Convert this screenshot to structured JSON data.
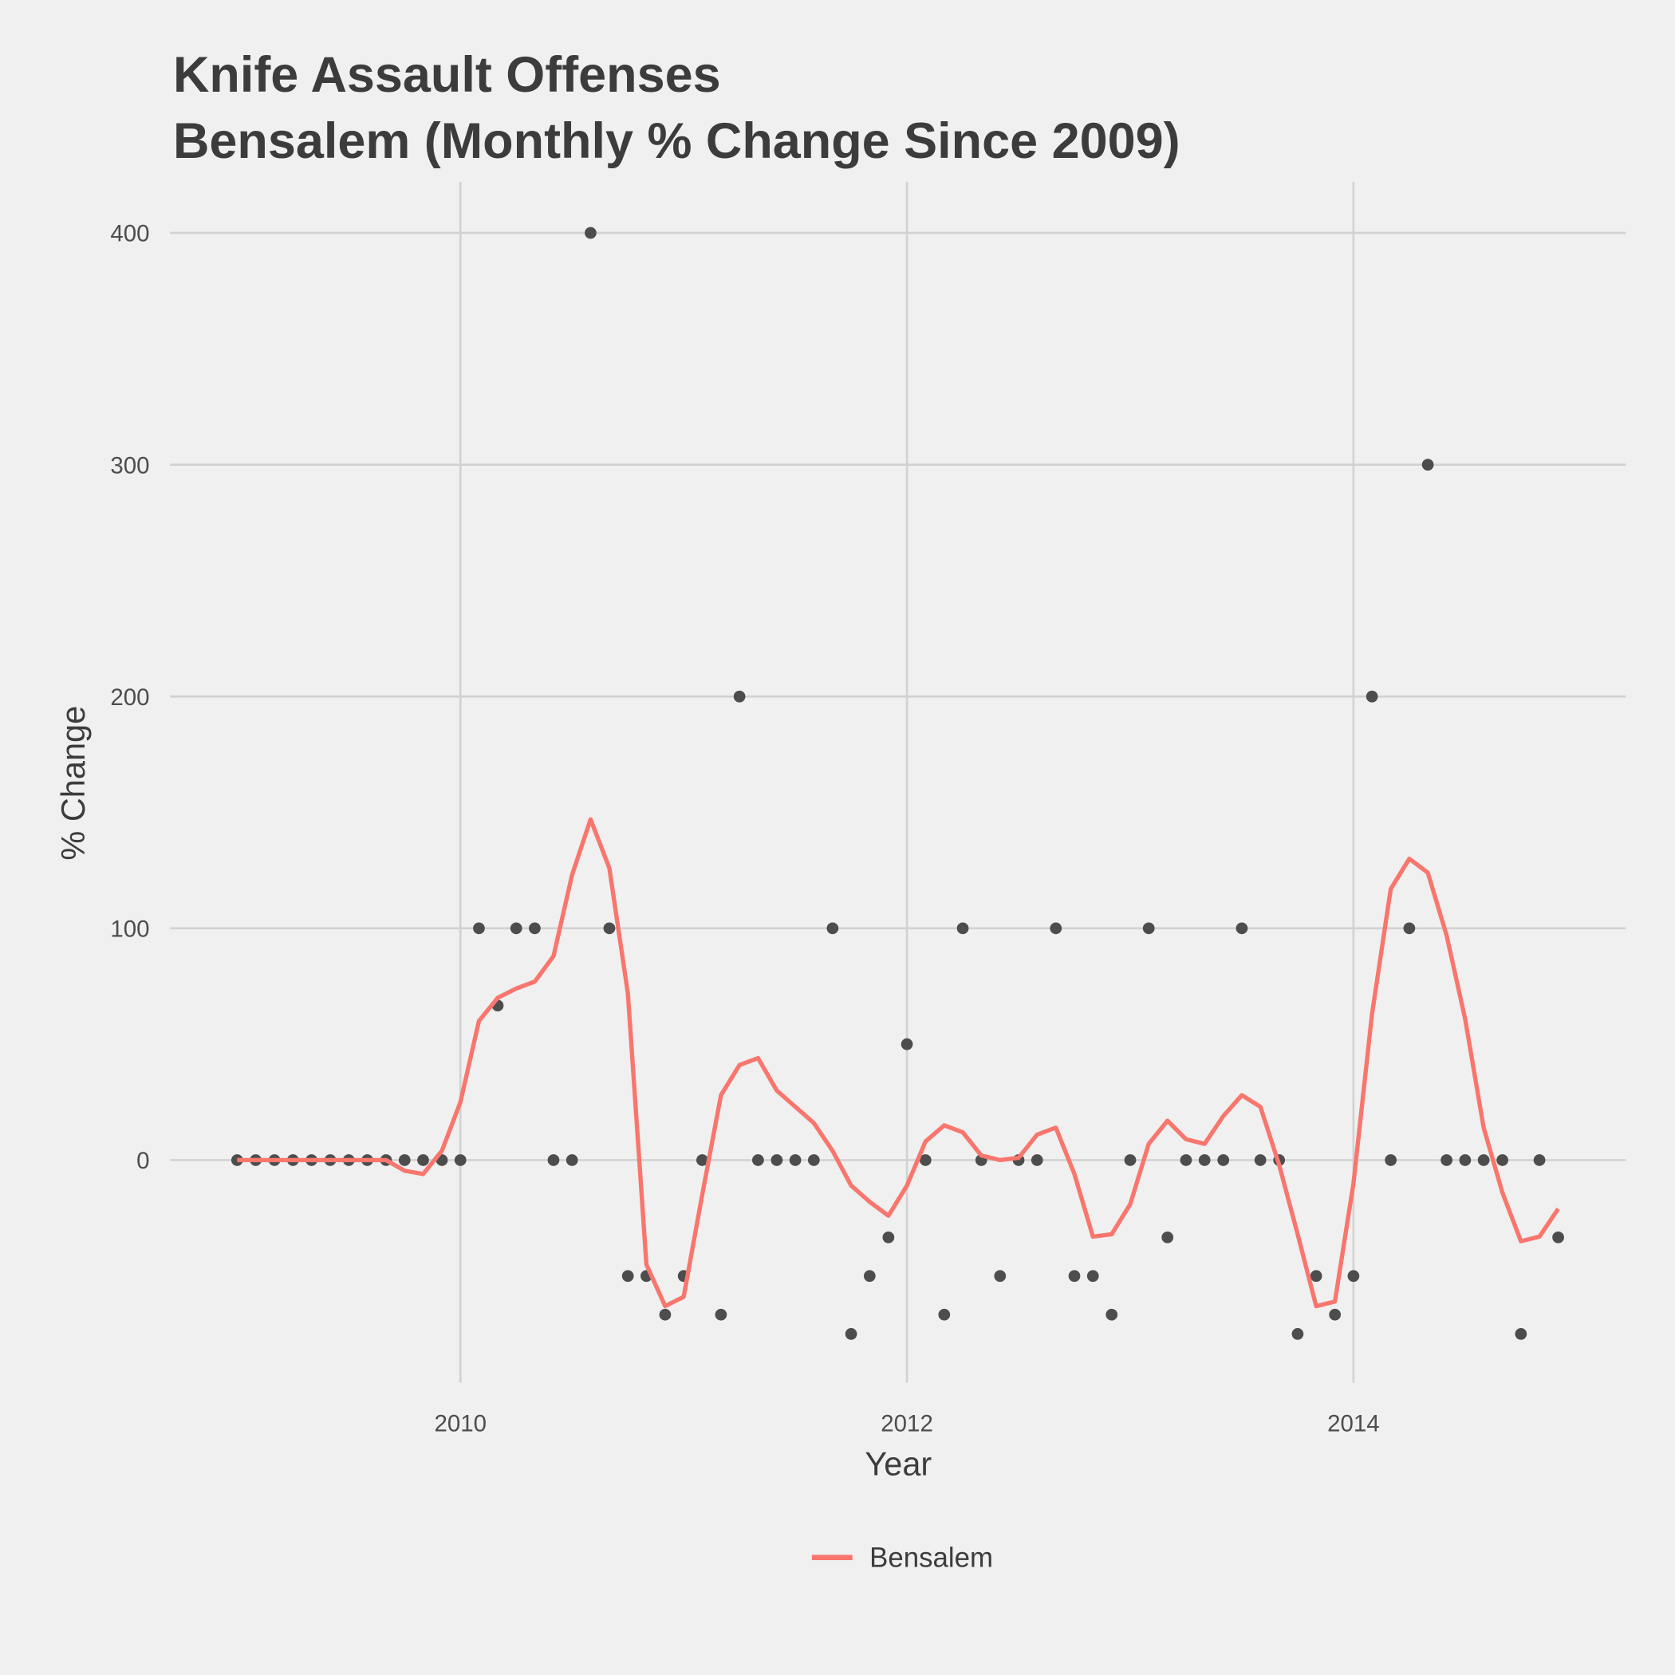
{
  "chart_data": {
    "type": "line",
    "title": [
      "Knife Assault Offenses",
      "Bensalem (Monthly % Change Since 2009)"
    ],
    "x_label": "Year",
    "y_label": "% Change",
    "x": [
      2009,
      2009.083,
      2009.167,
      2009.25,
      2009.333,
      2009.417,
      2009.5,
      2009.583,
      2009.667,
      2009.75,
      2009.833,
      2009.917,
      2010,
      2010.083,
      2010.167,
      2010.25,
      2010.333,
      2010.417,
      2010.5,
      2010.583,
      2010.667,
      2010.75,
      2010.833,
      2010.917,
      2011,
      2011.083,
      2011.167,
      2011.25,
      2011.333,
      2011.417,
      2011.5,
      2011.583,
      2011.667,
      2011.75,
      2011.833,
      2011.917,
      2012,
      2012.083,
      2012.167,
      2012.25,
      2012.333,
      2012.417,
      2012.5,
      2012.583,
      2012.667,
      2012.75,
      2012.833,
      2012.917,
      2013,
      2013.083,
      2013.167,
      2013.25,
      2013.333,
      2013.417,
      2013.5,
      2013.583,
      2013.667,
      2013.75,
      2013.833,
      2013.917,
      2014,
      2014.083,
      2014.167,
      2014.25,
      2014.333,
      2014.417,
      2014.5,
      2014.583,
      2014.667,
      2014.75,
      2014.833,
      2014.917
    ],
    "series": [
      {
        "name": "Bensalem",
        "color": "#f8766d",
        "values": [
          0,
          0,
          0,
          0,
          0,
          0,
          0,
          0,
          0,
          -4.6,
          -6,
          4,
          25,
          60,
          70,
          74,
          77,
          88,
          123,
          147,
          126,
          72,
          -45,
          -63,
          -59,
          -15,
          28,
          41,
          44,
          30,
          23,
          16,
          4,
          -11,
          -18,
          -24,
          -11,
          8,
          15,
          12,
          2,
          0,
          1,
          11,
          14,
          -6,
          -33,
          -32,
          -19,
          7,
          17,
          9,
          7,
          19,
          28,
          23,
          -2,
          -32,
          -63,
          -61,
          -10,
          63,
          117,
          130,
          124,
          97,
          61,
          14,
          -14,
          -35,
          -33,
          -21
        ]
      }
    ],
    "points": {
      "color": "#4d4d4d",
      "values": [
        0,
        0,
        0,
        0,
        0,
        0,
        0,
        0,
        0,
        0,
        0,
        0,
        0,
        100,
        66.67,
        100,
        100,
        0,
        0,
        400,
        100,
        -50,
        -50,
        -66.67,
        -50,
        0,
        -66.67,
        200,
        0,
        0,
        0,
        0,
        100,
        -75,
        -50,
        -33.33,
        50,
        0,
        -66.67,
        100,
        0,
        -50,
        0,
        0,
        100,
        -50,
        -50,
        -66.67,
        0,
        100,
        -33.33,
        0,
        0,
        0,
        100,
        0,
        0,
        -75,
        -50,
        -66.67,
        -50,
        200,
        0,
        100,
        300,
        0,
        0,
        0,
        0,
        -75,
        0,
        -33.33
      ]
    },
    "xlim": [
      2008.7,
      2015.22
    ],
    "ylim": [
      -96,
      422
    ],
    "xticks": [
      2010,
      2012,
      2014
    ],
    "yticks": [
      0,
      100,
      200,
      300,
      400
    ],
    "grid": true,
    "legend": "bottom"
  }
}
